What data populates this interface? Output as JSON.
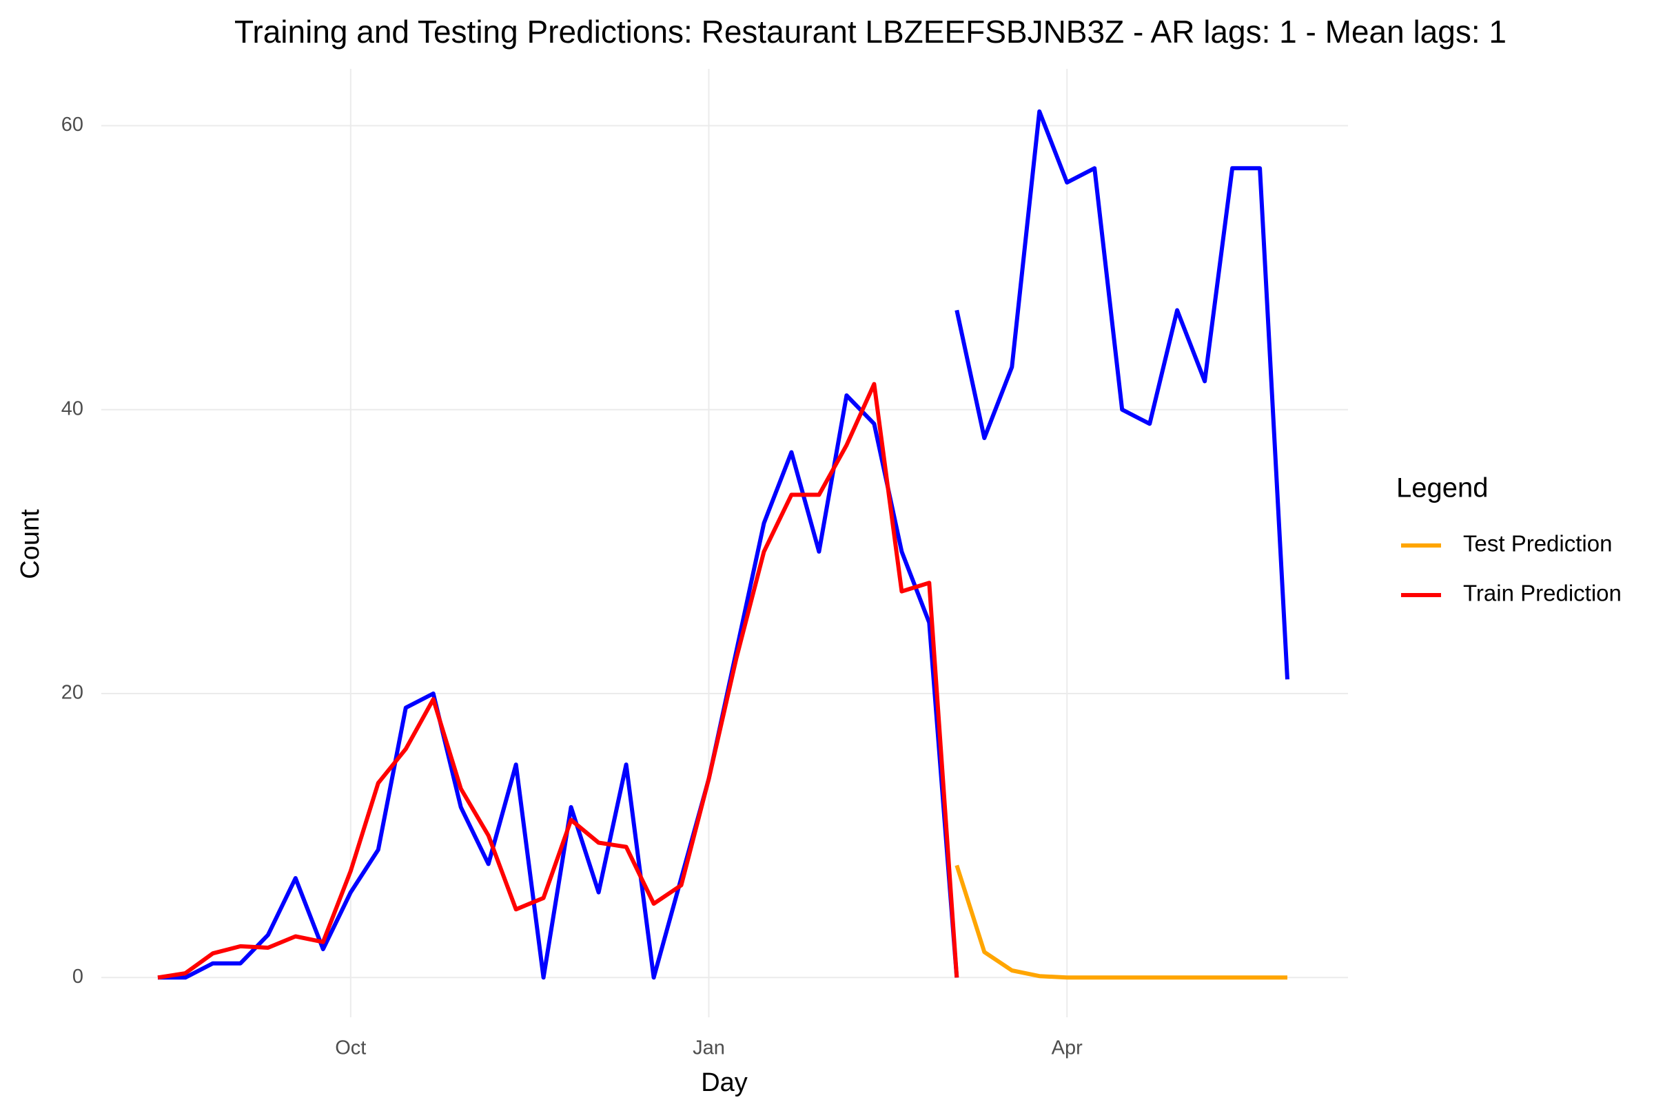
{
  "chart_data": {
    "type": "line",
    "title": "Training and Testing Predictions: Restaurant LBZEEFSBJNB3Z - AR lags: 1 - Mean lags: 1",
    "x_label": "Day",
    "y_label": "Count",
    "legend_title": "Legend",
    "legend": "right",
    "grid": true,
    "categories": [
      null,
      null,
      null,
      null,
      null,
      null,
      null,
      "Oct",
      null,
      null,
      null,
      null,
      null,
      null,
      null,
      null,
      null,
      null,
      null,
      null,
      "Jan",
      null,
      null,
      null,
      null,
      null,
      null,
      null,
      null,
      null,
      null,
      null,
      null,
      "Apr",
      null,
      null,
      null,
      null,
      null,
      null,
      null,
      null
    ],
    "ylim": [
      -2.8,
      64
    ],
    "yticks": [
      0,
      20,
      40,
      60
    ],
    "series": [
      {
        "color": "#0000ff",
        "values": [
          0,
          0,
          1,
          1,
          3,
          7,
          2,
          6,
          9,
          19,
          20,
          12,
          8,
          15,
          0,
          12,
          6,
          15,
          0,
          7,
          14,
          23,
          32,
          37,
          30,
          41,
          39,
          30,
          25,
          0,
          null,
          null,
          null,
          null,
          null,
          null,
          null,
          null,
          null,
          null,
          null,
          null
        ]
      },
      {
        "color": "#0000ff",
        "values": [
          null,
          null,
          null,
          null,
          null,
          null,
          null,
          null,
          null,
          null,
          null,
          null,
          null,
          null,
          null,
          null,
          null,
          null,
          null,
          null,
          null,
          null,
          null,
          null,
          null,
          null,
          null,
          null,
          null,
          47,
          38,
          43,
          61,
          56,
          57,
          40,
          39,
          47,
          42,
          57,
          57,
          21
        ]
      },
      {
        "name": "Test Prediction",
        "color": "#ffa500",
        "values": [
          null,
          null,
          null,
          null,
          null,
          null,
          null,
          null,
          null,
          null,
          null,
          null,
          null,
          null,
          null,
          null,
          null,
          null,
          null,
          null,
          null,
          null,
          null,
          null,
          null,
          null,
          null,
          null,
          null,
          7.9,
          1.8,
          0.5,
          0.1,
          0,
          0,
          0,
          0,
          0,
          0,
          0,
          0,
          0
        ]
      },
      {
        "name": "Train Prediction",
        "color": "#ff0000",
        "values": [
          0,
          0.3,
          1.7,
          2.2,
          2.1,
          2.9,
          2.5,
          7.5,
          13.7,
          16.1,
          19.6,
          13.3,
          10,
          4.8,
          5.6,
          11.1,
          9.5,
          9.2,
          5.2,
          6.5,
          14,
          22.5,
          30,
          34,
          34,
          37.5,
          41.8,
          27.2,
          27.8,
          0,
          null,
          null,
          null,
          null,
          null,
          null,
          null,
          null,
          null,
          null,
          null,
          null
        ]
      }
    ]
  }
}
